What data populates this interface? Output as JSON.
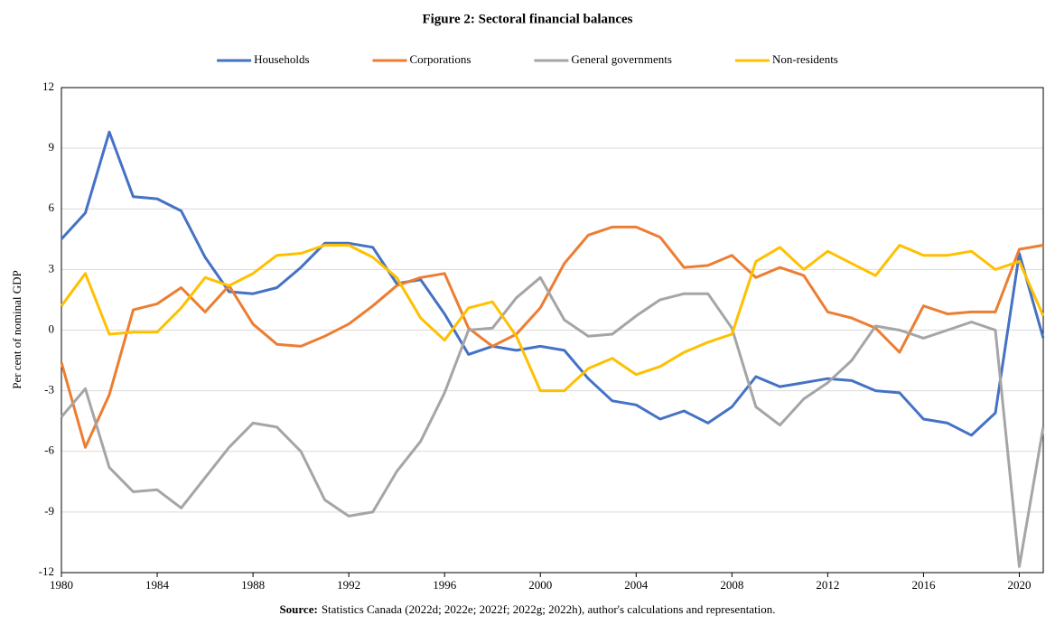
{
  "chart_data": {
    "type": "line",
    "title": "Figure 2: Sectoral financial balances",
    "y_label": "Per cent of nominal GDP",
    "source_label": "Source:",
    "source_text": "Statistics Canada (2022d; 2022e; 2022f; 2022g; 2022h), author's calculations and representation.",
    "x": [
      1980,
      1981,
      1982,
      1983,
      1984,
      1985,
      1986,
      1987,
      1988,
      1989,
      1990,
      1991,
      1992,
      1993,
      1994,
      1995,
      1996,
      1997,
      1998,
      1999,
      2000,
      2001,
      2002,
      2003,
      2004,
      2005,
      2006,
      2007,
      2008,
      2009,
      2010,
      2011,
      2012,
      2013,
      2014,
      2015,
      2016,
      2017,
      2018,
      2019,
      2020,
      2021
    ],
    "series": [
      {
        "name": "Households",
        "color": "#4472c4",
        "values": [
          4.5,
          5.8,
          9.8,
          6.6,
          6.5,
          5.9,
          3.6,
          1.9,
          1.8,
          2.1,
          3.1,
          4.3,
          4.3,
          4.1,
          2.3,
          2.5,
          0.8,
          -1.2,
          -0.8,
          -1.0,
          -0.8,
          -1.0,
          -2.4,
          -3.5,
          -3.7,
          -4.4,
          -4.0,
          -4.6,
          -3.8,
          -2.3,
          -2.8,
          -2.6,
          -2.4,
          -2.5,
          -3.0,
          -3.1,
          -4.4,
          -4.6,
          -5.2,
          -4.1,
          3.8,
          -0.4
        ]
      },
      {
        "name": "Corporations",
        "color": "#ed7d31",
        "values": [
          -1.6,
          -5.8,
          -3.2,
          1.0,
          1.3,
          2.1,
          0.9,
          2.2,
          0.3,
          -0.7,
          -0.8,
          -0.3,
          0.3,
          1.2,
          2.2,
          2.6,
          2.8,
          0.1,
          -0.8,
          -0.2,
          1.1,
          3.3,
          4.7,
          5.1,
          5.1,
          4.6,
          3.1,
          3.2,
          3.7,
          2.6,
          3.1,
          2.7,
          0.9,
          0.6,
          0.1,
          -1.1,
          1.2,
          0.8,
          0.9,
          0.9,
          4.0,
          4.2
        ]
      },
      {
        "name": "General governments",
        "color": "#a5a5a5",
        "values": [
          -4.3,
          -2.9,
          -6.8,
          -8.0,
          -7.9,
          -8.8,
          -7.3,
          -5.8,
          -4.6,
          -4.8,
          -6.0,
          -8.4,
          -9.2,
          -9.0,
          -7.0,
          -5.5,
          -3.1,
          0.0,
          0.1,
          1.6,
          2.6,
          0.5,
          -0.3,
          -0.2,
          0.7,
          1.5,
          1.8,
          1.8,
          0.1,
          -3.8,
          -4.7,
          -3.4,
          -2.6,
          -1.5,
          0.2,
          0.0,
          -0.4,
          0.0,
          0.4,
          0.0,
          -11.7,
          -4.8
        ]
      },
      {
        "name": "Non-residents",
        "color": "#ffc000",
        "values": [
          1.2,
          2.8,
          -0.2,
          -0.1,
          -0.1,
          1.1,
          2.6,
          2.2,
          2.8,
          3.7,
          3.8,
          4.2,
          4.2,
          3.6,
          2.6,
          0.6,
          -0.5,
          1.1,
          1.4,
          -0.3,
          -3.0,
          -3.0,
          -1.9,
          -1.4,
          -2.2,
          -1.8,
          -1.1,
          -0.6,
          -0.2,
          3.4,
          4.1,
          3.0,
          3.9,
          3.3,
          2.7,
          4.2,
          3.7,
          3.7,
          3.9,
          3.0,
          3.4,
          0.7
        ]
      }
    ],
    "xlim": [
      1980,
      2021
    ],
    "xticks": [
      1980,
      1984,
      1988,
      1992,
      1996,
      2000,
      2004,
      2008,
      2012,
      2016,
      2020
    ],
    "ylim": [
      -12,
      12
    ],
    "yticks": [
      -12,
      -9,
      -6,
      -3,
      0,
      3,
      6,
      9,
      12
    ],
    "grid": true,
    "legend": "top"
  }
}
